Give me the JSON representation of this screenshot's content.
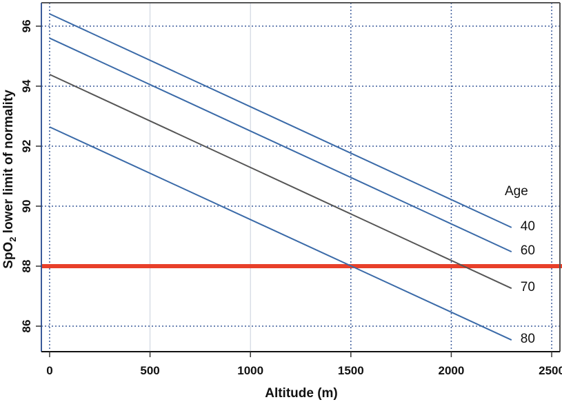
{
  "chart_data": {
    "type": "line",
    "title": "",
    "xlabel": "Altitude (m)",
    "ylabel_main": "SpO",
    "ylabel_sub": "2",
    "ylabel_rest": " lower limit of normality",
    "xlim": [
      -41,
      2541
    ],
    "ylim": [
      85.15,
      96.78
    ],
    "xticks": [
      0,
      500,
      1000,
      1500,
      2000,
      2500
    ],
    "yticks": [
      86,
      88,
      90,
      92,
      94,
      96
    ],
    "grid": true,
    "legend_title": "Age",
    "series": [
      {
        "name": "40",
        "color": "#3a6aa8",
        "x": [
          0,
          2300
        ],
        "y": [
          96.41,
          89.29
        ]
      },
      {
        "name": "60",
        "color": "#3a6aa8",
        "x": [
          0,
          2300
        ],
        "y": [
          95.6,
          88.48
        ]
      },
      {
        "name": "70",
        "color": "#555555",
        "x": [
          0,
          2300
        ],
        "y": [
          94.39,
          87.26
        ]
      },
      {
        "name": "80",
        "color": "#3a6aa8",
        "x": [
          0,
          2300
        ],
        "y": [
          92.64,
          85.54
        ]
      }
    ],
    "reference_line": {
      "y": 88,
      "color": "#e8402a"
    }
  }
}
